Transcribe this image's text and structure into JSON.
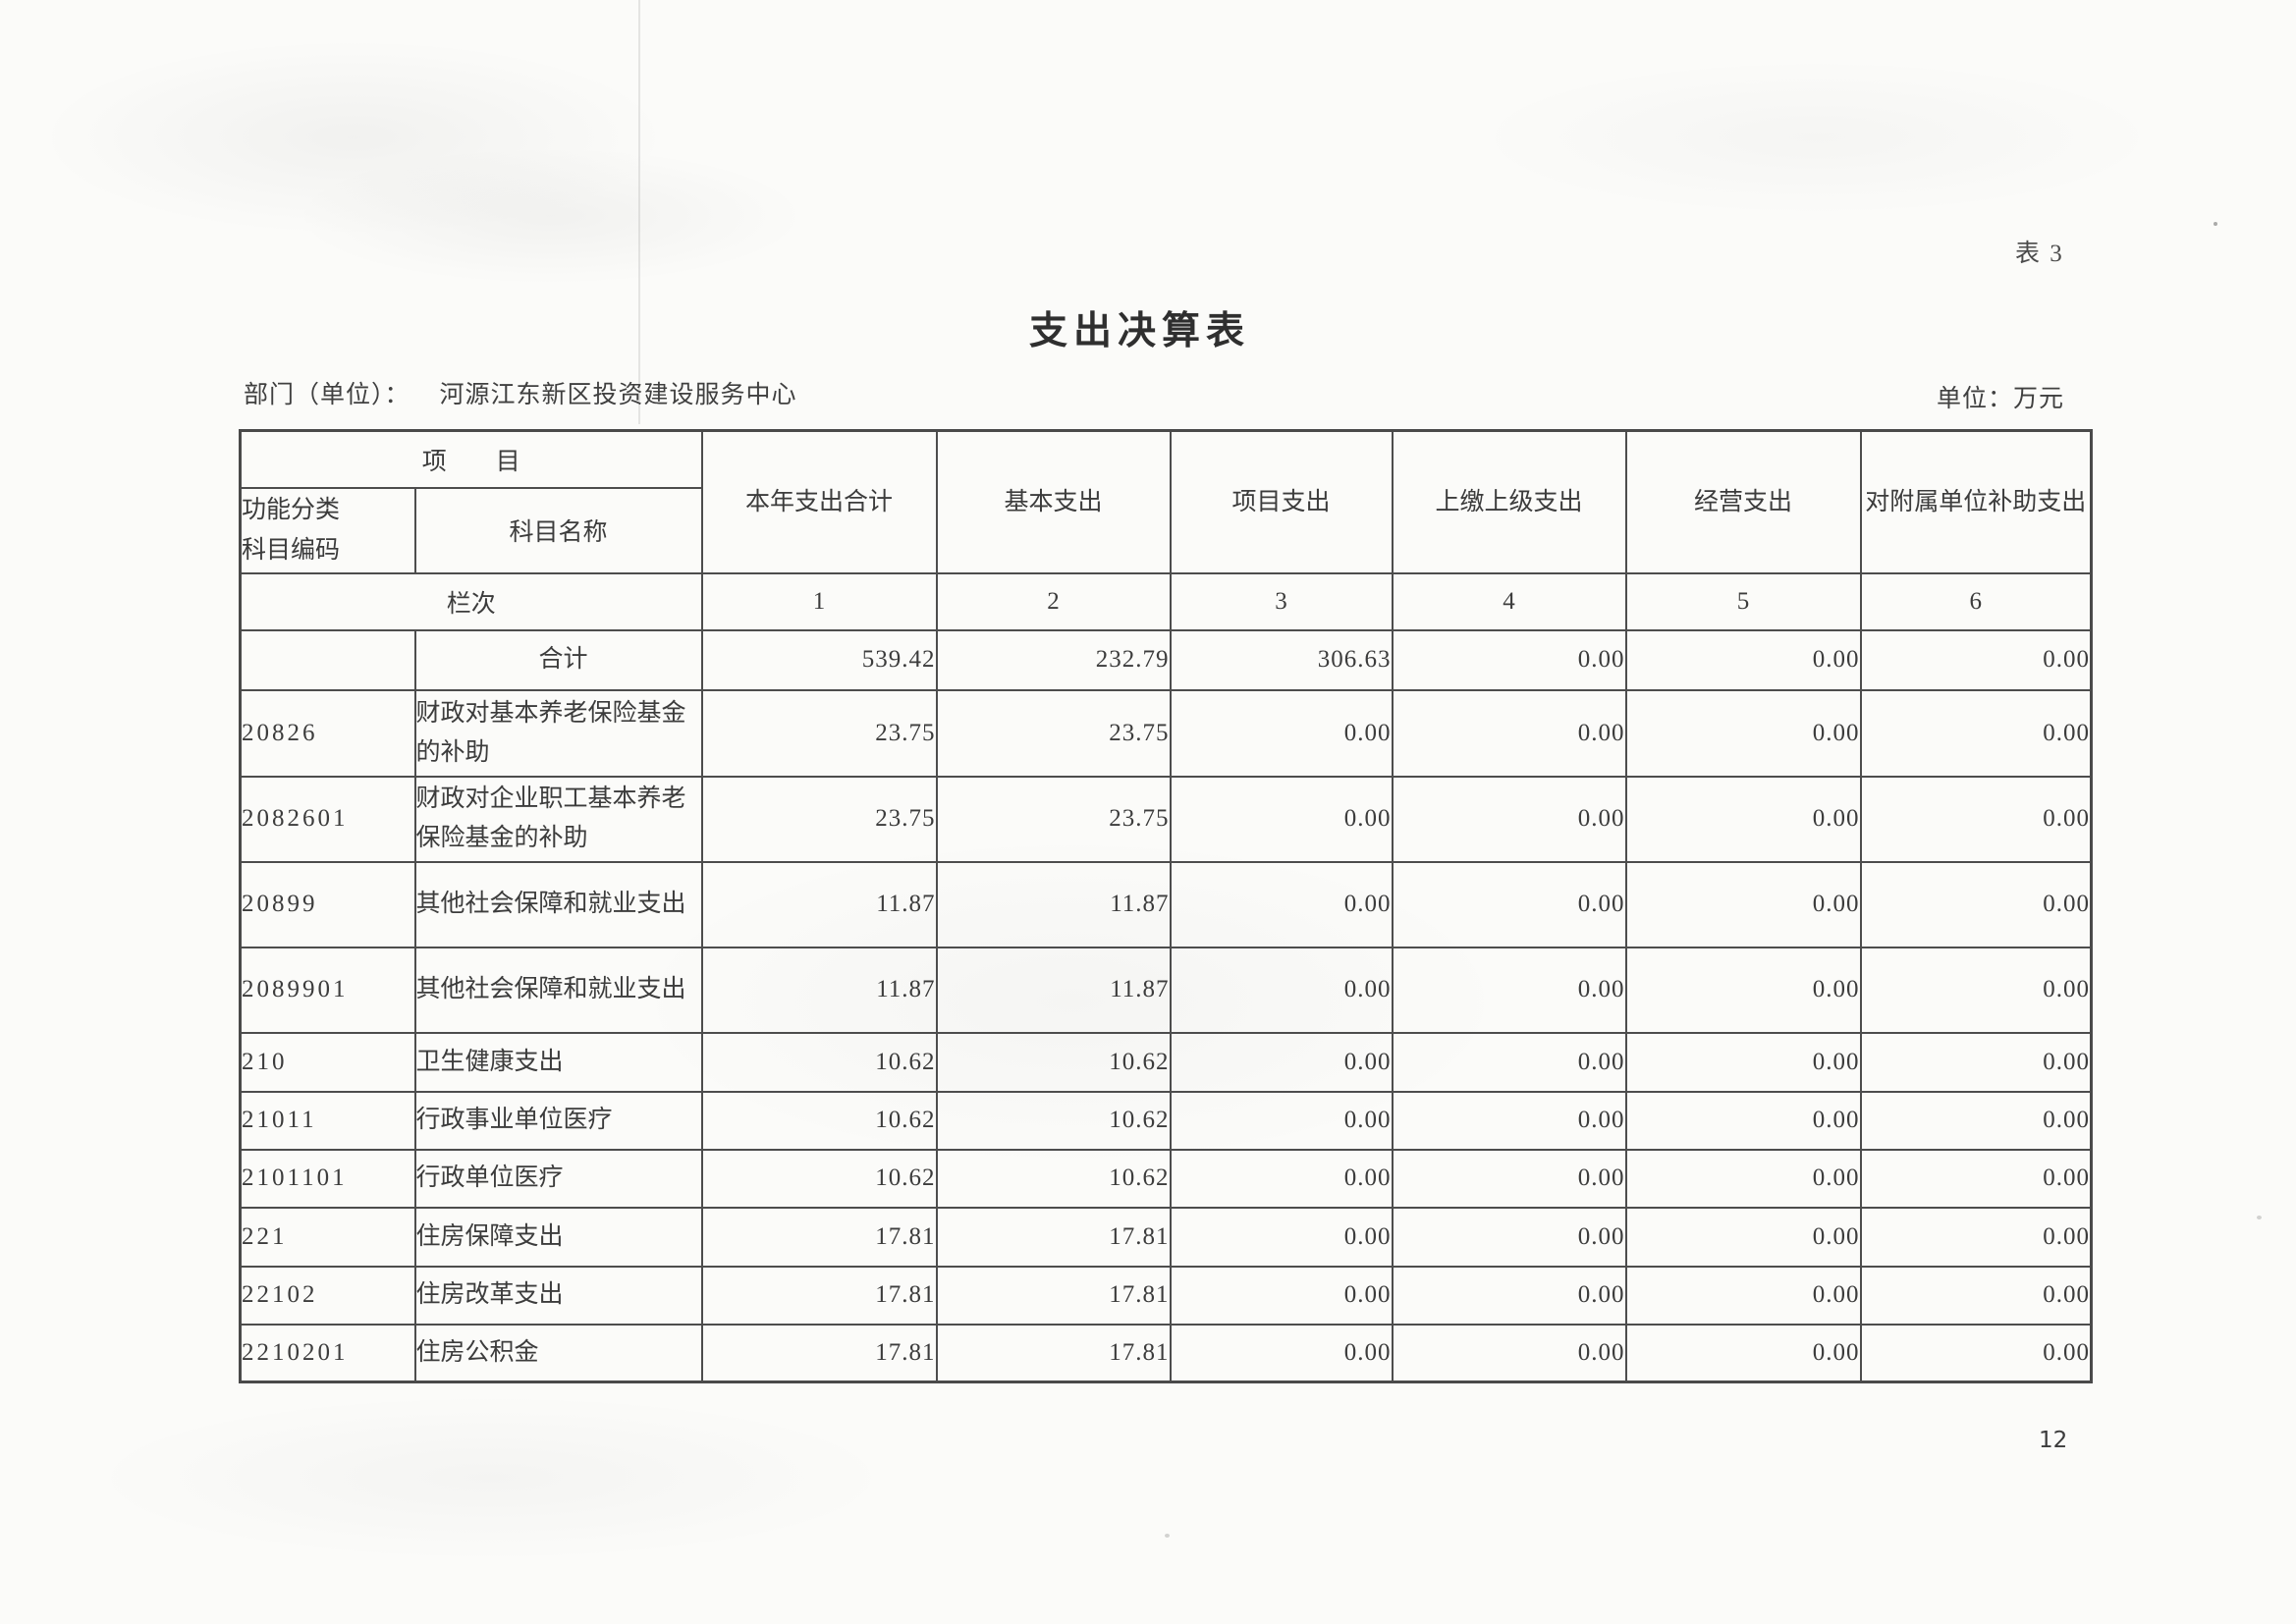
{
  "colors": {
    "paper": "#fbfbf9",
    "ink": "#3c3c3c",
    "line": "#4d4d4d"
  },
  "page": {
    "table_tag": "表 3",
    "title": "支出决算表",
    "department_label": "部门（单位）：",
    "department_value": "河源江东新区投资建设服务中心",
    "unit_label": "单位：万元",
    "page_number": "12"
  },
  "table": {
    "project_group_header": "项　　目",
    "code_header_line1": "功能分类",
    "code_header_line2": "科目编码",
    "name_header": "科目名称",
    "value_columns": [
      "本年支出合计",
      "基本支出",
      "项目支出",
      "上缴上级支出",
      "经营支出",
      "对附属单位补助支出"
    ],
    "lanci_label": "栏次",
    "column_numbers": [
      "1",
      "2",
      "3",
      "4",
      "5",
      "6"
    ],
    "rows": [
      {
        "code": "",
        "name": "合计",
        "values": [
          "539.42",
          "232.79",
          "306.63",
          "0.00",
          "0.00",
          "0.00"
        ]
      },
      {
        "code": "20826",
        "name": "财政对基本养老保险基金的补助",
        "values": [
          "23.75",
          "23.75",
          "0.00",
          "0.00",
          "0.00",
          "0.00"
        ]
      },
      {
        "code": "2082601",
        "name": "财政对企业职工基本养老保险基金的补助",
        "values": [
          "23.75",
          "23.75",
          "0.00",
          "0.00",
          "0.00",
          "0.00"
        ]
      },
      {
        "code": "20899",
        "name": "其他社会保障和就业支出",
        "values": [
          "11.87",
          "11.87",
          "0.00",
          "0.00",
          "0.00",
          "0.00"
        ]
      },
      {
        "code": "2089901",
        "name": "其他社会保障和就业支出",
        "values": [
          "11.87",
          "11.87",
          "0.00",
          "0.00",
          "0.00",
          "0.00"
        ]
      },
      {
        "code": "210",
        "name": "卫生健康支出",
        "values": [
          "10.62",
          "10.62",
          "0.00",
          "0.00",
          "0.00",
          "0.00"
        ]
      },
      {
        "code": "21011",
        "name": "行政事业单位医疗",
        "values": [
          "10.62",
          "10.62",
          "0.00",
          "0.00",
          "0.00",
          "0.00"
        ]
      },
      {
        "code": "2101101",
        "name": "行政单位医疗",
        "values": [
          "10.62",
          "10.62",
          "0.00",
          "0.00",
          "0.00",
          "0.00"
        ]
      },
      {
        "code": "221",
        "name": "住房保障支出",
        "values": [
          "17.81",
          "17.81",
          "0.00",
          "0.00",
          "0.00",
          "0.00"
        ]
      },
      {
        "code": "22102",
        "name": "住房改革支出",
        "values": [
          "17.81",
          "17.81",
          "0.00",
          "0.00",
          "0.00",
          "0.00"
        ]
      },
      {
        "code": "2210201",
        "name": "住房公积金",
        "values": [
          "17.81",
          "17.81",
          "0.00",
          "0.00",
          "0.00",
          "0.00"
        ]
      }
    ]
  }
}
